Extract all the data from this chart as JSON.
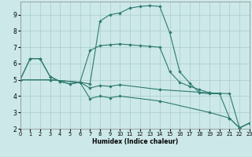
{
  "xlabel": "Humidex (Indice chaleur)",
  "bg_color": "#cce8e8",
  "grid_color": "#aacccc",
  "line_color": "#2d7a6e",
  "xlim": [
    0,
    23
  ],
  "ylim": [
    2,
    9.8
  ],
  "xticks": [
    0,
    1,
    2,
    3,
    4,
    5,
    6,
    7,
    8,
    9,
    10,
    11,
    12,
    13,
    14,
    15,
    16,
    17,
    18,
    19,
    20,
    21,
    22,
    23
  ],
  "yticks": [
    2,
    3,
    4,
    5,
    6,
    7,
    8,
    9
  ],
  "lines": [
    {
      "x": [
        0,
        1,
        2,
        3,
        4,
        5,
        6,
        7,
        8,
        9,
        10,
        11,
        12,
        13,
        14,
        15,
        16,
        17,
        18,
        19,
        20
      ],
      "y": [
        5.0,
        6.3,
        6.3,
        5.2,
        4.9,
        4.75,
        4.85,
        4.75,
        8.6,
        9.0,
        9.1,
        9.4,
        9.5,
        9.55,
        9.5,
        7.9,
        5.5,
        4.8,
        4.2,
        4.15,
        4.15
      ],
      "has_marker": true
    },
    {
      "x": [
        0,
        1,
        2,
        3,
        4,
        5,
        6,
        7,
        8,
        9,
        10,
        11,
        12,
        13,
        14,
        15,
        16,
        17,
        18,
        19,
        20,
        21,
        22,
        23
      ],
      "y": [
        5.0,
        6.3,
        6.3,
        5.2,
        4.9,
        4.75,
        4.85,
        6.8,
        7.1,
        7.15,
        7.2,
        7.15,
        7.1,
        7.05,
        7.0,
        5.5,
        4.85,
        4.6,
        4.4,
        4.2,
        4.15,
        2.65,
        2.05,
        2.35
      ],
      "has_marker": true
    },
    {
      "x": [
        0,
        3,
        6,
        7,
        8,
        9,
        10,
        14,
        19,
        21,
        22,
        23
      ],
      "y": [
        5.0,
        5.0,
        4.85,
        4.5,
        4.65,
        4.6,
        4.7,
        4.4,
        4.2,
        4.15,
        2.05,
        2.35
      ],
      "has_marker": true
    },
    {
      "x": [
        0,
        3,
        6,
        7,
        8,
        9,
        10,
        14,
        19,
        21,
        22,
        23
      ],
      "y": [
        5.0,
        5.0,
        4.85,
        3.85,
        4.0,
        3.9,
        4.0,
        3.7,
        3.0,
        2.65,
        2.05,
        2.35
      ],
      "has_marker": true
    }
  ]
}
